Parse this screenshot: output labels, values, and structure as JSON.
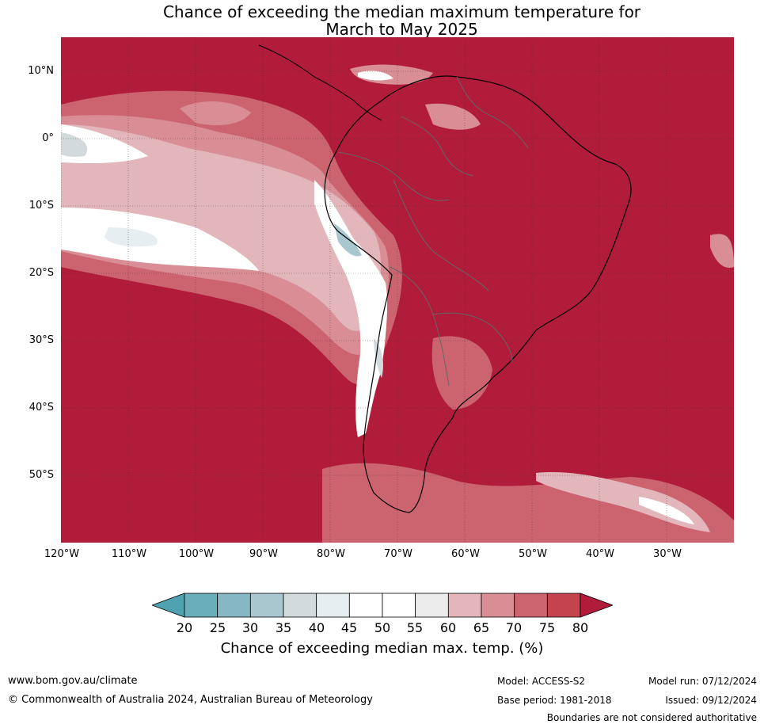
{
  "title": {
    "line1": "Chance of exceeding the median maximum temperature for",
    "line2": "March to May 2025"
  },
  "map": {
    "lat_labels": [
      "10°N",
      "0°",
      "10°S",
      "20°S",
      "30°S",
      "40°S",
      "50°S"
    ],
    "lon_labels": [
      "120°W",
      "110°W",
      "100°W",
      "90°W",
      "80°W",
      "70°W",
      "60°W",
      "50°W",
      "40°W",
      "30°W"
    ],
    "colors": {
      "dominant": "#b01c3a",
      "band_75": "#c5434f",
      "band_70": "#cc6470",
      "band_65": "#d98e96",
      "band_60": "#e3b6bb",
      "band_55": "#ececec",
      "neutral": "#ffffff",
      "band_40": "#e7eef1",
      "band_35": "#d2dadc",
      "band_30": "#a8c7cf",
      "band_25": "#86b7c5",
      "band_20": "#6aaeba",
      "coast": "#000000",
      "borders": "#666666",
      "grid": "#333333"
    }
  },
  "colorbar": {
    "label": "Chance of exceeding median max. temp. (%)",
    "ticks": [
      "20",
      "25",
      "30",
      "35",
      "40",
      "45",
      "50",
      "55",
      "60",
      "65",
      "70",
      "75",
      "80"
    ],
    "segment_colors": [
      "#6aaeba",
      "#86b7c5",
      "#a8c7cf",
      "#d2dadc",
      "#e7eef1",
      "#ffffff",
      "#ffffff",
      "#ececec",
      "#e3b6bb",
      "#d98e96",
      "#cc6470",
      "#c5434f"
    ],
    "low_extension_color": "#4fa3b1",
    "high_extension_color": "#b01c3a"
  },
  "footer": {
    "website": "www.bom.gov.au/climate",
    "copyright": "© Commonwealth of Australia 2024, Australian Bureau of Meteorology",
    "model": "Model: ACCESS-S2",
    "base_period": "Base period: 1981-2018",
    "model_run": "Model run: 07/12/2024",
    "issued": "Issued: 09/12/2024",
    "disclaimer": "Boundaries are not considered authoritative"
  }
}
